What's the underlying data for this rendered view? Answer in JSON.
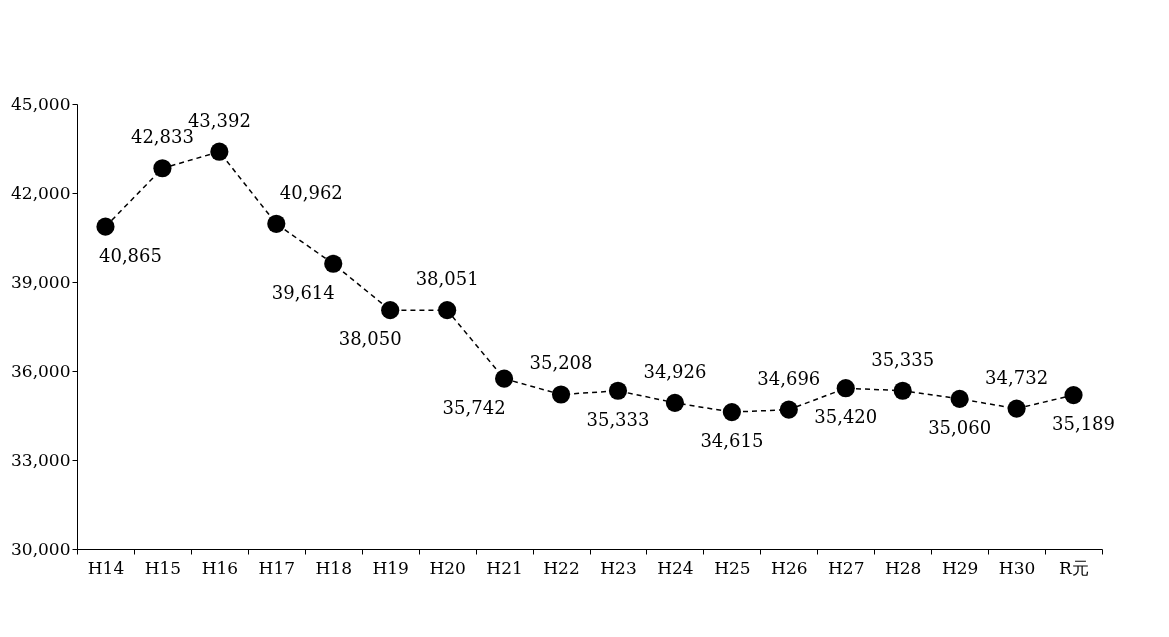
{
  "chart_data": {
    "type": "line",
    "categories": [
      "H14",
      "H15",
      "H16",
      "H17",
      "H18",
      "H19",
      "H20",
      "H21",
      "H22",
      "H23",
      "H24",
      "H25",
      "H26",
      "H27",
      "H28",
      "H29",
      "H30",
      "R元"
    ],
    "series": [
      {
        "color": "#000000",
        "values": [
          40865,
          42833,
          43392,
          40962,
          39614,
          38050,
          38051,
          35742,
          35208,
          35333,
          34926,
          34615,
          34696,
          35420,
          35335,
          35060,
          34732,
          35189
        ],
        "value_labels": [
          "40,865",
          "42,833",
          "43,392",
          "40,962",
          "39,614",
          "38,050",
          "38,051",
          "35,742",
          "35,208",
          "35,333",
          "34,926",
          "34,615",
          "34,696",
          "35,420",
          "35,335",
          "35,060",
          "34,732",
          "35,189"
        ]
      }
    ],
    "ylim": [
      30000,
      45000
    ],
    "yticks": [
      {
        "value": 30000,
        "label": "30,000"
      },
      {
        "value": 33000,
        "label": "33,000"
      },
      {
        "value": 36000,
        "label": "36,000"
      },
      {
        "value": 39000,
        "label": "39,000"
      },
      {
        "value": 42000,
        "label": "42,000"
      },
      {
        "value": 45000,
        "label": "45,000"
      }
    ],
    "marker": "circle",
    "line_style": "dashed",
    "grid": false
  }
}
